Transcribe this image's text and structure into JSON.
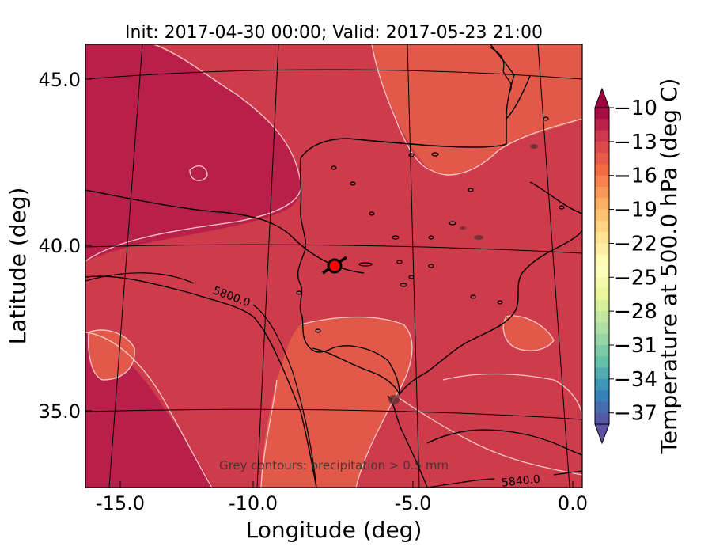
{
  "chart_data": {
    "type": "heatmap",
    "title": "Init: 2017-04-30 00:00; Valid: 2017-05-23 21:00",
    "xlabel": "Longitude (deg)",
    "ylabel": "Latitude (deg)",
    "xlim": [
      -15.8,
      0.1
    ],
    "ylim": [
      32.6,
      46.0
    ],
    "x_ticks": [
      "-15.0",
      "-10.0",
      "-5.0",
      "0.0"
    ],
    "y_ticks": [
      "35.0",
      "40.0",
      "45.0"
    ],
    "colorbar": {
      "label": "Temperature at 500.0 hPa (deg C)",
      "min": -38,
      "max": -10,
      "ticks": [
        "−10",
        "−13",
        "−16",
        "−19",
        "−22",
        "−25",
        "−28",
        "−31",
        "−34",
        "−37"
      ],
      "colormap": "Spectral_r",
      "extend": "both"
    },
    "contour_labels": [
      "5800.0",
      "5840.0"
    ],
    "annotation": "Grey contours: precipitation > 0.5 mm",
    "marker": {
      "lon": -7.6,
      "lat": 39.3,
      "color": "#ff0000"
    },
    "field_colors": {
      "coldest": "#b8204a",
      "cold": "#ce3b4b",
      "warm": "#e2594a"
    }
  }
}
